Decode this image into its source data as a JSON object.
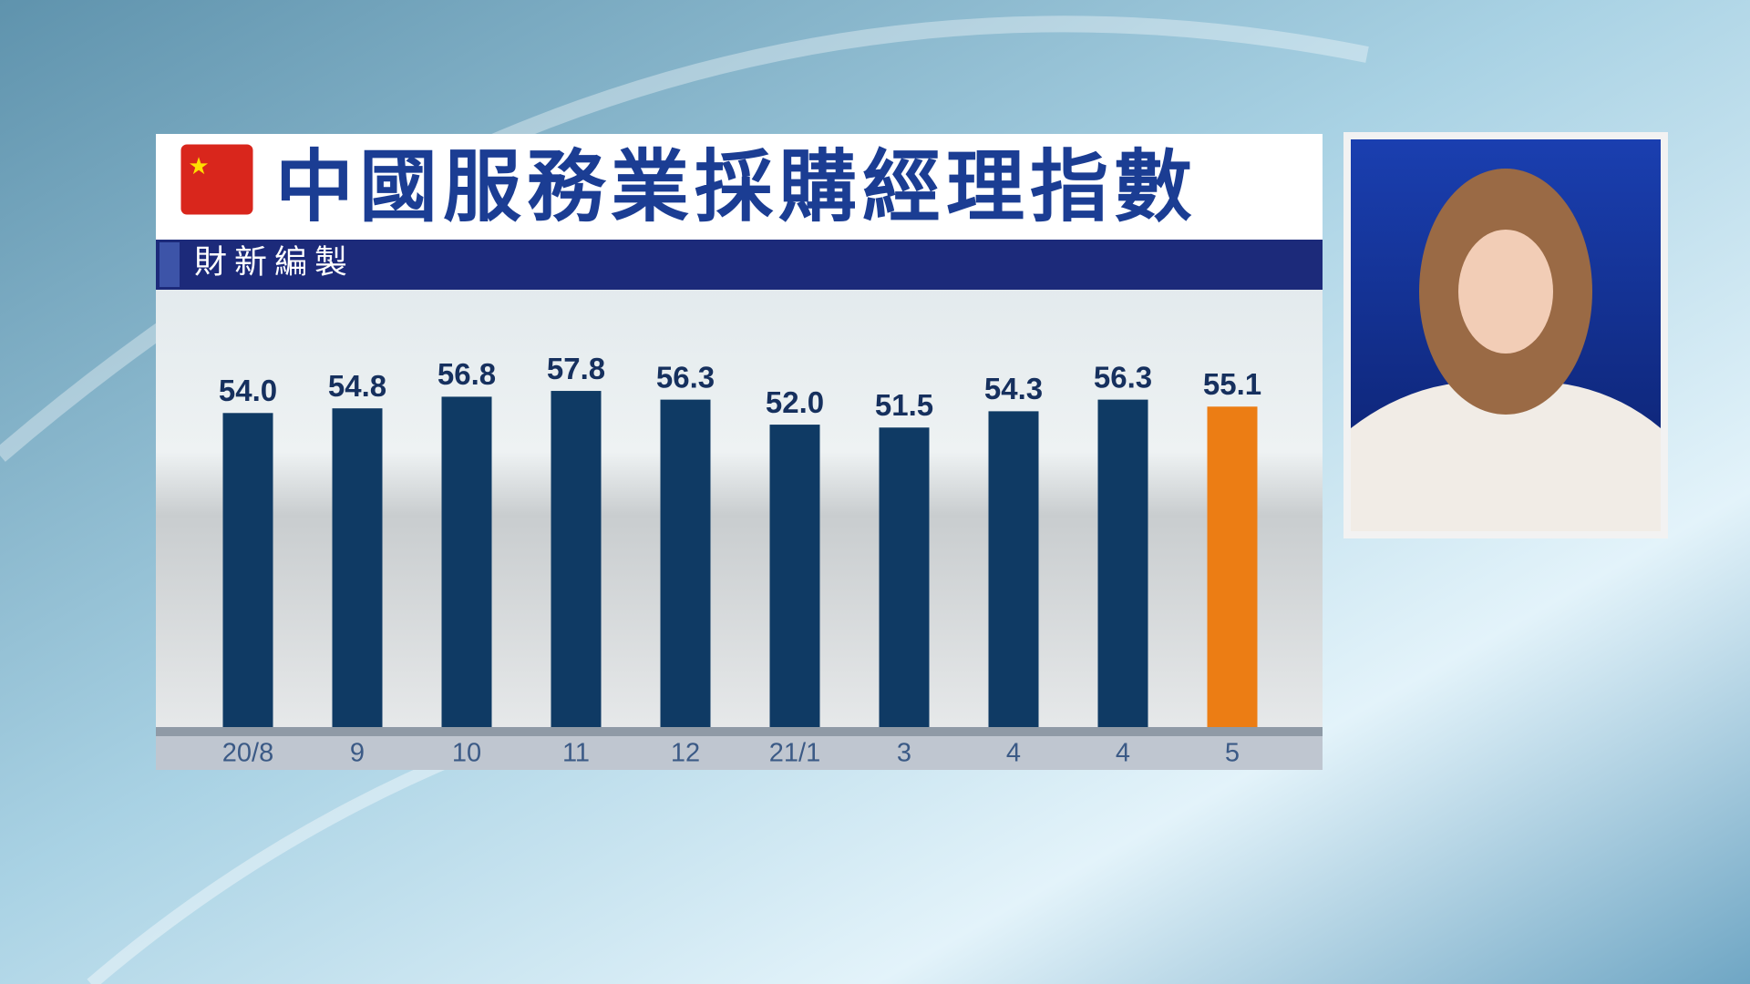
{
  "chart_data": {
    "type": "bar",
    "title": "中國服務業採購經理指數",
    "subtitle": "財新編製",
    "categories": [
      "20/8",
      "9",
      "10",
      "11",
      "12",
      "21/1",
      "3",
      "4",
      "4",
      "5"
    ],
    "values": [
      54.0,
      54.8,
      56.8,
      57.8,
      56.3,
      52.0,
      51.5,
      54.3,
      56.3,
      55.1
    ],
    "value_labels": [
      "54.0",
      "54.8",
      "56.8",
      "57.8",
      "56.3",
      "52.0",
      "51.5",
      "54.3",
      "56.3",
      "55.1"
    ],
    "colors": [
      "#0f3a64",
      "#0f3a64",
      "#0f3a64",
      "#0f3a64",
      "#0f3a64",
      "#0f3a64",
      "#0f3a64",
      "#0f3a64",
      "#0f3a64",
      "#ec7d14"
    ],
    "ylim": [
      0,
      60
    ]
  }
}
